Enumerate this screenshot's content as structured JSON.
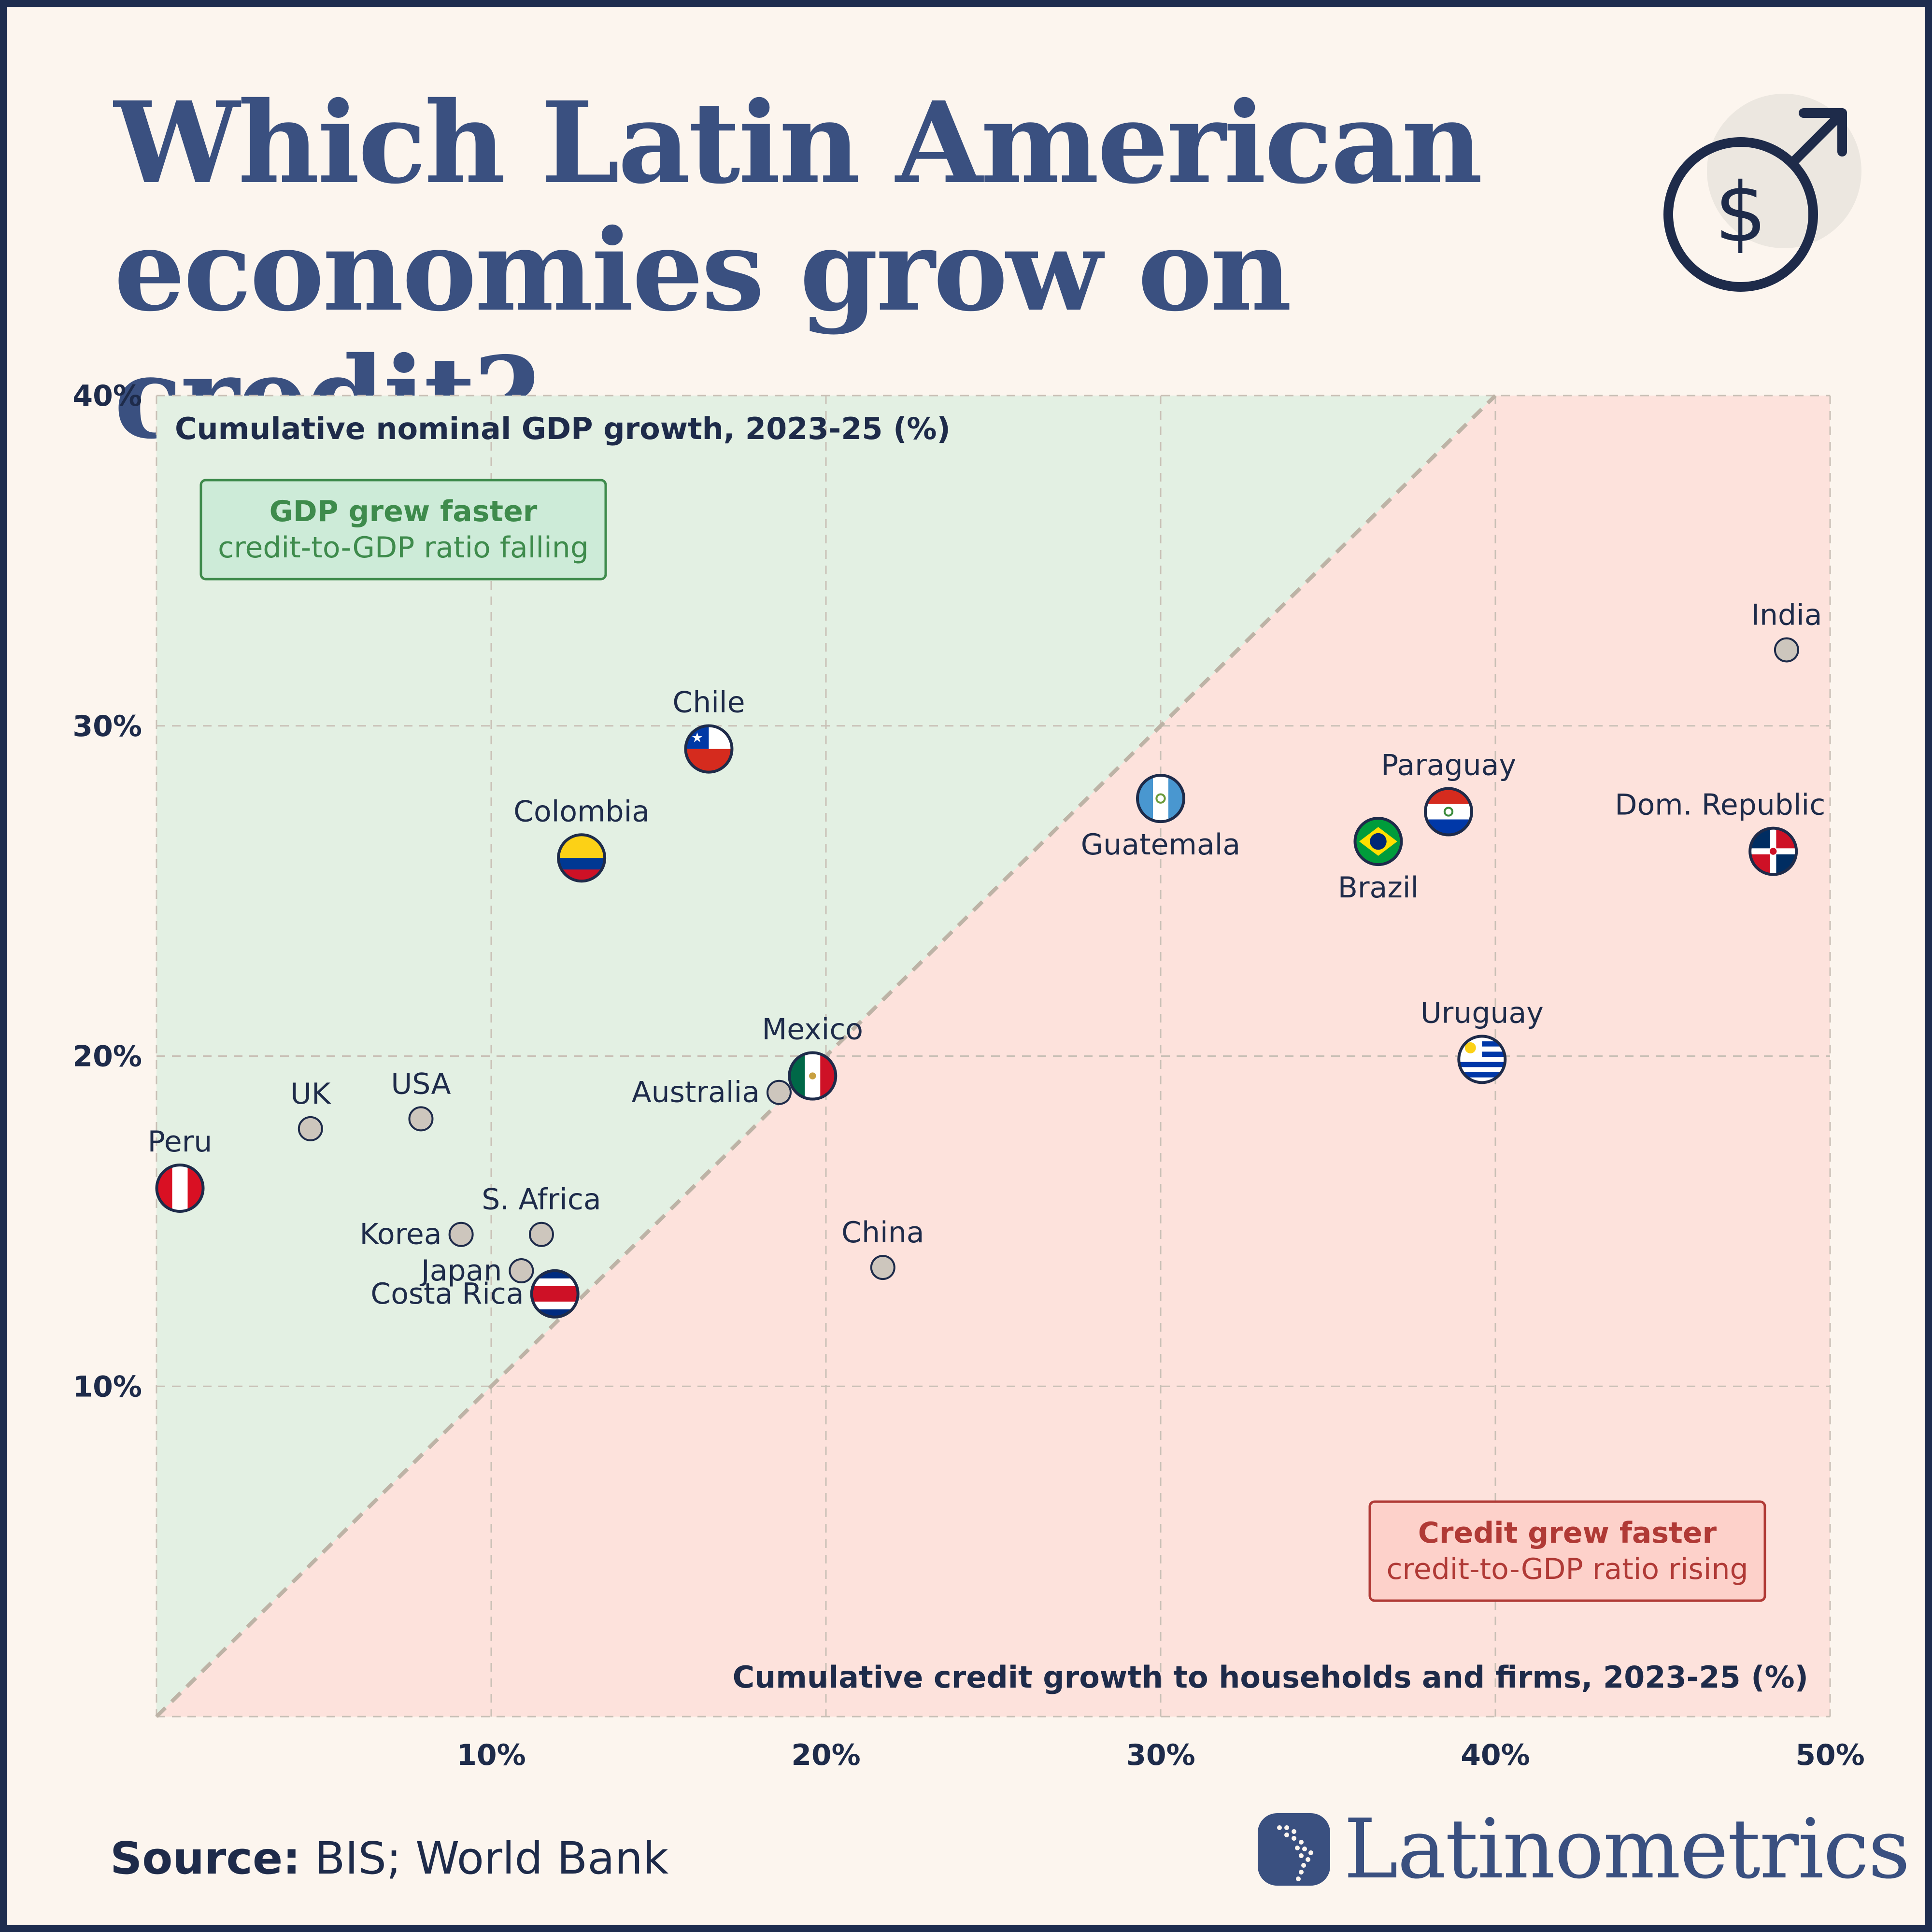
{
  "title": {
    "line1": "Which Latin American",
    "line2": "economies grow on credit?"
  },
  "header_icon": "dollar-growth-icon",
  "colors": {
    "title": "#3a5080",
    "gdp_region": "#e3f0e3",
    "credit_region": "#fde2dc",
    "gdp_text": "#3e8b4c",
    "credit_text": "#b03a36",
    "other_point": "#cdc6bd",
    "ink": "#1e2b4a"
  },
  "source": {
    "label": "Source:",
    "text": "BIS; World Bank"
  },
  "brand": {
    "name": "Latinometrics",
    "icon": "latin-america-map-icon"
  },
  "chart_data": {
    "type": "scatter",
    "xlabel": "Cumulative credit growth to households and firms, 2023-25 (%)",
    "ylabel": "Cumulative nominal GDP growth, 2023-25 (%)",
    "xlim": [
      0,
      50
    ],
    "ylim": [
      0,
      40
    ],
    "x_ticks": [
      10,
      20,
      30,
      40,
      50
    ],
    "x_tick_labels": [
      "10%",
      "20%",
      "30%",
      "40%",
      "50%"
    ],
    "y_ticks": [
      10,
      20,
      30,
      40
    ],
    "y_tick_labels": [
      "10%",
      "20%",
      "30%",
      "40%"
    ],
    "grid": true,
    "reference_line": "y = x",
    "regions": {
      "upper": {
        "title": "GDP grew faster",
        "subtitle": "credit-to-GDP ratio falling"
      },
      "lower": {
        "title": "Credit grew faster",
        "subtitle": "credit-to-GDP ratio rising"
      }
    },
    "points": [
      {
        "label": "Chile",
        "x": 16.5,
        "y": 29.3,
        "flag": "chile",
        "latam": true,
        "label_pos": "above"
      },
      {
        "label": "Colombia",
        "x": 12.7,
        "y": 26.0,
        "flag": "colombia",
        "latam": true,
        "label_pos": "above"
      },
      {
        "label": "Guatemala",
        "x": 30.0,
        "y": 27.8,
        "flag": "guatemala",
        "latam": true,
        "label_pos": "below"
      },
      {
        "label": "Paraguay",
        "x": 38.6,
        "y": 27.4,
        "flag": "paraguay",
        "latam": true,
        "label_pos": "above"
      },
      {
        "label": "Brazil",
        "x": 36.5,
        "y": 26.5,
        "flag": "brazil",
        "latam": true,
        "label_pos": "below"
      },
      {
        "label": "Dom. Republic",
        "x": 48.3,
        "y": 26.2,
        "flag": "dominican-republic",
        "latam": true,
        "label_pos": "above-left"
      },
      {
        "label": "Mexico",
        "x": 19.6,
        "y": 19.4,
        "flag": "mexico",
        "latam": true,
        "label_pos": "above"
      },
      {
        "label": "Uruguay",
        "x": 39.6,
        "y": 19.9,
        "flag": "uruguay",
        "latam": true,
        "label_pos": "above"
      },
      {
        "label": "Peru",
        "x": 0.7,
        "y": 16.0,
        "flag": "peru",
        "latam": true,
        "label_pos": "above"
      },
      {
        "label": "Costa Rica",
        "x": 11.9,
        "y": 12.8,
        "flag": "costa-rica",
        "latam": true,
        "label_pos": "left"
      },
      {
        "label": "India",
        "x": 48.7,
        "y": 32.3,
        "latam": false,
        "label_pos": "above"
      },
      {
        "label": "Australia",
        "x": 18.6,
        "y": 18.9,
        "latam": false,
        "label_pos": "left"
      },
      {
        "label": "UK",
        "x": 4.6,
        "y": 17.8,
        "latam": false,
        "label_pos": "above"
      },
      {
        "label": "USA",
        "x": 7.9,
        "y": 18.1,
        "latam": false,
        "label_pos": "above"
      },
      {
        "label": "S. Africa",
        "x": 11.5,
        "y": 14.6,
        "latam": false,
        "label_pos": "above"
      },
      {
        "label": "Korea",
        "x": 9.1,
        "y": 14.6,
        "latam": false,
        "label_pos": "left"
      },
      {
        "label": "Japan",
        "x": 10.9,
        "y": 13.5,
        "latam": false,
        "label_pos": "left"
      },
      {
        "label": "China",
        "x": 21.7,
        "y": 13.6,
        "latam": false,
        "label_pos": "above"
      }
    ]
  }
}
